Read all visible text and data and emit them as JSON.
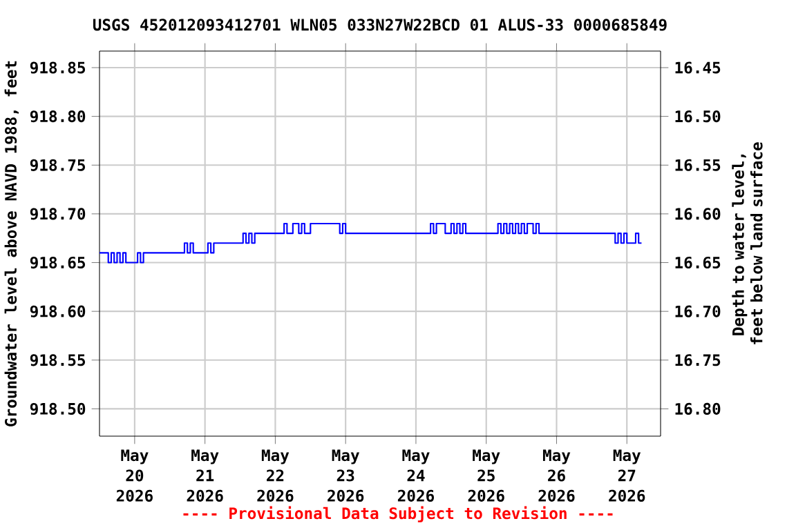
{
  "chart_data": {
    "type": "step",
    "title": "USGS 452012093412701 WLN05     033N27W22BCD   01 ALUS-33     0000685849",
    "ylabel": "Groundwater level above NAVD 1988, feet",
    "y2label": "Depth to water level, feet below land surface",
    "annotations": [
      "---- Provisional Data Subject to Revision ----"
    ],
    "xlim": [
      "2026-05-19T12:00",
      "2026-05-27T11:30"
    ],
    "xticks": [
      {
        "value": "2026-05-20",
        "label": "May 20 2026"
      },
      {
        "value": "2026-05-21",
        "label": "May 21 2026"
      },
      {
        "value": "2026-05-22",
        "label": "May 22 2026"
      },
      {
        "value": "2026-05-23",
        "label": "May 23 2026"
      },
      {
        "value": "2026-05-24",
        "label": "May 24 2026"
      },
      {
        "value": "2026-05-25",
        "label": "May 25 2026"
      },
      {
        "value": "2026-05-26",
        "label": "May 26 2026"
      },
      {
        "value": "2026-05-27",
        "label": "May 27 2026"
      }
    ],
    "ylim": [
      918.472,
      918.867
    ],
    "yticks": [
      {
        "value": 918.5,
        "label": "918.50"
      },
      {
        "value": 918.55,
        "label": "918.55"
      },
      {
        "value": 918.6,
        "label": "918.60"
      },
      {
        "value": 918.65,
        "label": "918.65"
      },
      {
        "value": 918.7,
        "label": "918.70"
      },
      {
        "value": 918.75,
        "label": "918.75"
      },
      {
        "value": 918.8,
        "label": "918.80"
      },
      {
        "value": 918.85,
        "label": "918.85"
      }
    ],
    "y2lim": [
      16.828,
      16.433
    ],
    "y2ticks": [
      {
        "value": 16.45,
        "label": "16.45"
      },
      {
        "value": 16.5,
        "label": "16.50"
      },
      {
        "value": 16.55,
        "label": "16.55"
      },
      {
        "value": 16.6,
        "label": "16.60"
      },
      {
        "value": 16.65,
        "label": "16.65"
      },
      {
        "value": 16.7,
        "label": "16.70"
      },
      {
        "value": 16.75,
        "label": "16.75"
      },
      {
        "value": 16.8,
        "label": "16.80"
      }
    ],
    "grid": true,
    "series": [
      {
        "color": "#0000ff",
        "x": [
          "2026-05-19T12:00",
          "2026-05-19T14:00",
          "2026-05-19T15:00",
          "2026-05-19T16:00",
          "2026-05-19T17:00",
          "2026-05-19T18:00",
          "2026-05-19T19:00",
          "2026-05-19T20:00",
          "2026-05-19T21:00",
          "2026-05-20T01:00",
          "2026-05-20T02:00",
          "2026-05-20T03:00",
          "2026-05-20T16:00",
          "2026-05-20T17:00",
          "2026-05-20T18:00",
          "2026-05-20T19:00",
          "2026-05-20T20:00",
          "2026-05-21T00:00",
          "2026-05-21T01:00",
          "2026-05-21T02:00",
          "2026-05-21T03:00",
          "2026-05-21T12:00",
          "2026-05-21T13:00",
          "2026-05-21T14:00",
          "2026-05-21T15:00",
          "2026-05-21T16:00",
          "2026-05-21T17:00",
          "2026-05-22T03:00",
          "2026-05-22T04:00",
          "2026-05-22T06:00",
          "2026-05-22T08:00",
          "2026-05-22T09:00",
          "2026-05-22T10:00",
          "2026-05-22T12:00",
          "2026-05-22T21:00",
          "2026-05-22T22:00",
          "2026-05-22T23:00",
          "2026-05-23T00:00",
          "2026-05-24T05:00",
          "2026-05-24T06:00",
          "2026-05-24T07:00",
          "2026-05-24T10:00",
          "2026-05-24T12:00",
          "2026-05-24T13:00",
          "2026-05-24T14:00",
          "2026-05-24T15:00",
          "2026-05-24T16:00",
          "2026-05-24T17:00",
          "2026-05-25T04:00",
          "2026-05-25T05:00",
          "2026-05-25T06:00",
          "2026-05-25T07:00",
          "2026-05-25T08:00",
          "2026-05-25T09:00",
          "2026-05-25T10:00",
          "2026-05-25T11:00",
          "2026-05-25T12:00",
          "2026-05-25T13:00",
          "2026-05-25T14:00",
          "2026-05-25T16:00",
          "2026-05-25T17:00",
          "2026-05-25T18:00",
          "2026-05-26T20:00",
          "2026-05-26T21:00",
          "2026-05-26T22:00",
          "2026-05-26T23:00",
          "2026-05-27T00:00",
          "2026-05-27T03:00",
          "2026-05-27T04:00",
          "2026-05-27T05:00"
        ],
        "values": [
          918.66,
          918.66,
          918.65,
          918.66,
          918.65,
          918.66,
          918.65,
          918.66,
          918.65,
          918.66,
          918.65,
          918.66,
          918.66,
          918.67,
          918.66,
          918.67,
          918.66,
          918.66,
          918.67,
          918.66,
          918.67,
          918.67,
          918.68,
          918.67,
          918.68,
          918.67,
          918.68,
          918.69,
          918.68,
          918.69,
          918.68,
          918.69,
          918.68,
          918.69,
          918.69,
          918.68,
          918.69,
          918.68,
          918.69,
          918.68,
          918.69,
          918.68,
          918.69,
          918.68,
          918.69,
          918.68,
          918.69,
          918.68,
          918.69,
          918.68,
          918.69,
          918.68,
          918.69,
          918.68,
          918.69,
          918.68,
          918.69,
          918.68,
          918.69,
          918.68,
          918.69,
          918.68,
          918.67,
          918.68,
          918.67,
          918.68,
          918.67,
          918.68,
          918.67,
          918.67
        ]
      }
    ]
  }
}
